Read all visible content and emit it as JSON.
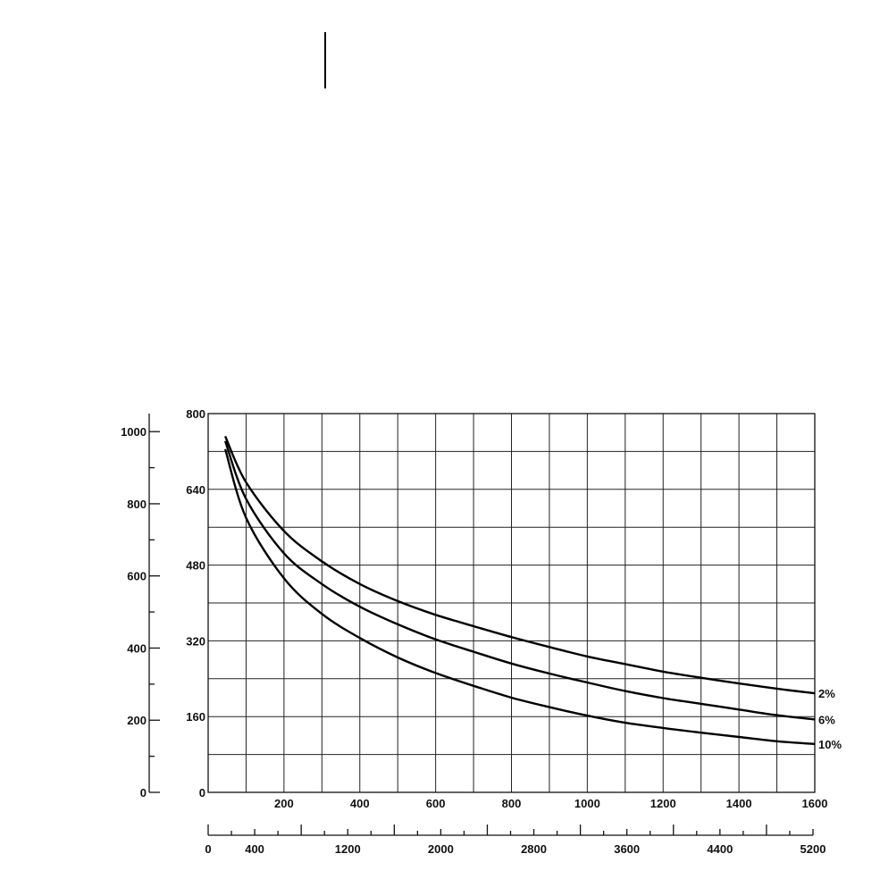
{
  "chart_data": {
    "type": "line",
    "title": "",
    "xlabel": "",
    "ylabel": "",
    "x_primary": {
      "range": [
        0,
        1600
      ],
      "ticks": [
        200,
        400,
        600,
        800,
        1000,
        1200,
        1400,
        1600
      ],
      "tick_labels": [
        "200",
        "400",
        "600",
        "800",
        "1000",
        "1200",
        "1400",
        "1600"
      ]
    },
    "x_secondary": {
      "range": [
        0,
        5200
      ],
      "ticks": [
        0,
        400,
        1200,
        2000,
        2800,
        3600,
        4400,
        5200
      ],
      "tick_labels": [
        "0",
        "400",
        "1200",
        "2000",
        "2800",
        "3600",
        "4400",
        "5200"
      ]
    },
    "y_primary": {
      "range": [
        0,
        800
      ],
      "ticks": [
        0,
        160,
        320,
        480,
        640,
        800
      ],
      "tick_labels": [
        "0",
        "160",
        "320",
        "480",
        "640",
        "800"
      ]
    },
    "y_secondary": {
      "range": [
        0,
        1050
      ],
      "ticks": [
        0,
        200,
        400,
        600,
        800,
        1000
      ],
      "tick_labels": [
        "0",
        "200",
        "400",
        "600",
        "800",
        "1000"
      ]
    },
    "grid": true,
    "legend": "none",
    "series": [
      {
        "name": "2%",
        "x": [
          45,
          100,
          200,
          300,
          400,
          500,
          600,
          700,
          800,
          900,
          1000,
          1100,
          1200,
          1300,
          1400,
          1500,
          1600
        ],
        "y": [
          752,
          655,
          552,
          488,
          440,
          404,
          375,
          351,
          328,
          307,
          287,
          271,
          255,
          242,
          230,
          219,
          209
        ]
      },
      {
        "name": "6%",
        "x": [
          45,
          100,
          200,
          300,
          400,
          500,
          600,
          700,
          800,
          900,
          1000,
          1100,
          1200,
          1300,
          1400,
          1500,
          1600
        ],
        "y": [
          742,
          620,
          505,
          440,
          392,
          355,
          323,
          297,
          272,
          251,
          232,
          214,
          199,
          187,
          175,
          163,
          154
        ]
      },
      {
        "name": "10%",
        "x": [
          45,
          100,
          200,
          300,
          400,
          500,
          600,
          700,
          800,
          900,
          1000,
          1100,
          1200,
          1300,
          1400,
          1500,
          1600
        ],
        "y": [
          725,
          580,
          452,
          377,
          326,
          285,
          252,
          225,
          200,
          180,
          162,
          147,
          136,
          126,
          117,
          108,
          102
        ]
      }
    ]
  }
}
